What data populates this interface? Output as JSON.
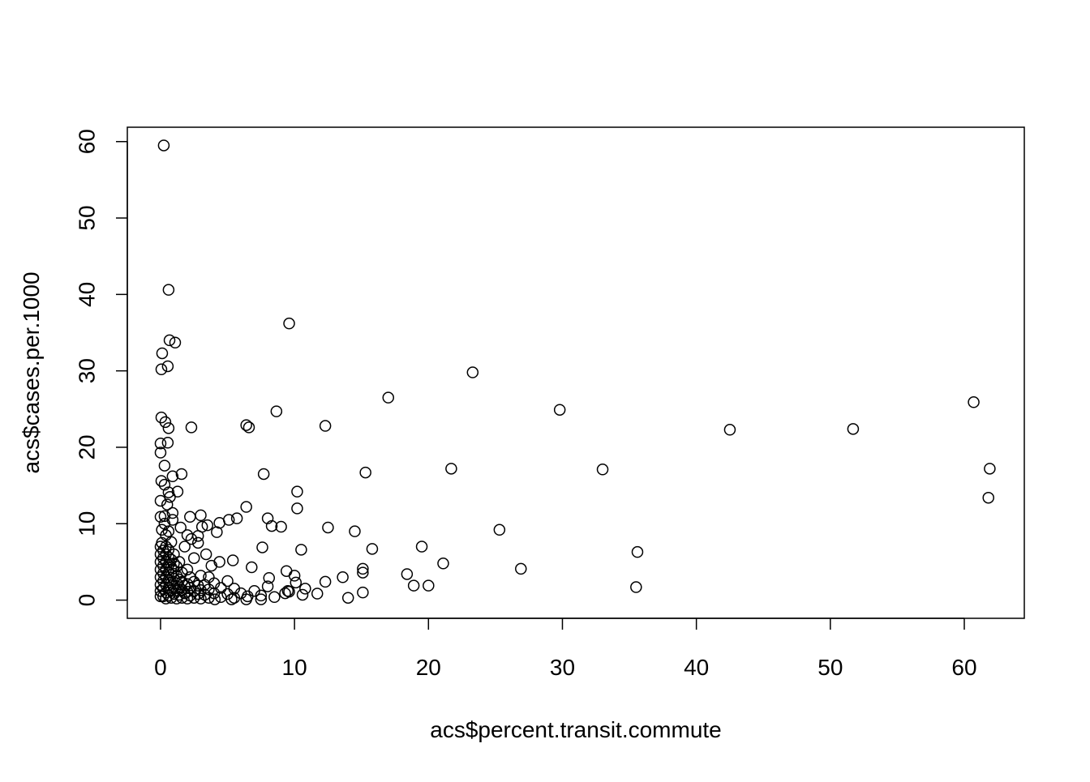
{
  "chart_data": {
    "type": "scatter",
    "x_label": "acs$percent.transit.commute",
    "y_label": "acs$cases.per.1000",
    "xlim": [
      -2.48,
      64.48
    ],
    "ylim": [
      -2.38,
      61.88
    ],
    "xticks": [
      0,
      10,
      20,
      30,
      40,
      50,
      60
    ],
    "yticks": [
      0,
      10,
      20,
      30,
      40,
      50,
      60
    ],
    "color": "#000000",
    "x": [
      0.24,
      0.6,
      9.6,
      0.67,
      1.09,
      0.12,
      0.54,
      0.06,
      23.3,
      17.0,
      29.8,
      60.7,
      8.65,
      0.06,
      0.36,
      0.6,
      2.3,
      6.4,
      6.6,
      12.3,
      42.5,
      51.7,
      0,
      0.54,
      0,
      0.3,
      21.7,
      33.0,
      61.9,
      7.7,
      15.3,
      1.57,
      0.9,
      0.06,
      0.3,
      1.27,
      0.6,
      10.2,
      61.8,
      0,
      6.4,
      10.2,
      0.9,
      2.2,
      3.0,
      8.0,
      0,
      5.7,
      5.1,
      4.4,
      3.5,
      3.1,
      9.0,
      8.3,
      12.5,
      14.5,
      25.3,
      4.2,
      2.8,
      19.5,
      7.6,
      15.8,
      10.5,
      35.6,
      3.4,
      21.1,
      26.9,
      15.1,
      4.4,
      5.4,
      6.8,
      18.4,
      15.1,
      9.4,
      10.0,
      13.6,
      12.3,
      10.1,
      8.1,
      18.9,
      20.0,
      35.5,
      10.8,
      11.7,
      15.1,
      14.0,
      10.6,
      9.6,
      8.5,
      7.5,
      6.4,
      5.3,
      4.05,
      0,
      0,
      0,
      0,
      0,
      0,
      0,
      0,
      0.1,
      0.2,
      0.2,
      0.2,
      0.2,
      0.2,
      0.2,
      0.2,
      0.4,
      0.4,
      0.4,
      0.4,
      0.4,
      0.4,
      0.4,
      0.4,
      0.4,
      0.6,
      0.6,
      0.6,
      0.6,
      0.6,
      0.6,
      0.6,
      0.6,
      0.8,
      0.8,
      0.8,
      0.8,
      0.8,
      0.8,
      0.8,
      1,
      1,
      1,
      1,
      1,
      1,
      1.2,
      1.2,
      1.2,
      1.2,
      1.2,
      1.4,
      1.4,
      1.4,
      1.4,
      1.6,
      1.6,
      1.6,
      1.6,
      1.8,
      1.8,
      1.8,
      2,
      2,
      2,
      2,
      2,
      2.2,
      2.2,
      2.2,
      2.5,
      2.5,
      2.5,
      2.5,
      2.8,
      2.8,
      2.8,
      3,
      3,
      3,
      3.3,
      3.3,
      3.6,
      3.6,
      3.6,
      4,
      4,
      4.5,
      4.5,
      5,
      5,
      5.5,
      5.5,
      6,
      6.5,
      7,
      7.5,
      8,
      9.5,
      9.3,
      3.8,
      2.3,
      1.5,
      0.9,
      0.3,
      0.5,
      0.7,
      0.3,
      0.1
    ],
    "values": [
      59.5,
      40.6,
      36.2,
      34.0,
      33.7,
      32.3,
      30.6,
      30.2,
      29.8,
      26.5,
      24.9,
      25.9,
      24.7,
      23.9,
      23.3,
      22.5,
      22.6,
      22.9,
      22.6,
      22.8,
      22.3,
      22.4,
      20.5,
      20.6,
      19.3,
      17.6,
      17.2,
      17.1,
      17.2,
      16.5,
      16.7,
      16.5,
      16.2,
      15.6,
      15.1,
      14.2,
      14.1,
      14.2,
      13.4,
      13.0,
      12.2,
      12.0,
      11.4,
      10.9,
      11.1,
      10.7,
      10.9,
      10.7,
      10.5,
      10.1,
      9.8,
      9.6,
      9.6,
      9.7,
      9.5,
      9.0,
      9.2,
      8.9,
      8.4,
      7.0,
      6.9,
      6.7,
      6.6,
      6.3,
      6.0,
      4.8,
      4.1,
      4.1,
      5.0,
      5.2,
      4.3,
      3.4,
      3.6,
      3.8,
      3.2,
      3.0,
      2.4,
      2.3,
      2.9,
      1.9,
      1.9,
      1.7,
      1.5,
      0.85,
      1.0,
      0.3,
      0.7,
      1.1,
      0.4,
      0.1,
      0.1,
      0.1,
      0.1,
      0.5,
      1.2,
      2,
      3,
      4,
      5,
      6,
      7,
      7.5,
      6.5,
      5.5,
      4.5,
      3.5,
      2.5,
      1.5,
      0.5,
      0.2,
      1,
      2,
      3,
      4,
      5,
      6,
      7,
      8.5,
      0.6,
      1.6,
      2.6,
      3.6,
      4.6,
      5.6,
      6.6,
      9,
      0.3,
      1.3,
      2.3,
      3.3,
      4.3,
      5.3,
      7.6,
      0.8,
      1.8,
      2.8,
      3.8,
      4.8,
      6,
      0.2,
      1.2,
      2.2,
      3.2,
      4.4,
      0.7,
      1.7,
      2.7,
      5,
      0.3,
      1.3,
      2.4,
      3.6,
      0.9,
      1.9,
      7,
      0.2,
      1.1,
      2.1,
      4,
      8.5,
      0.6,
      1.6,
      3,
      0.3,
      1.2,
      2.4,
      5.5,
      0.8,
      1.9,
      7.5,
      0.2,
      1.3,
      3.2,
      0.7,
      2,
      0.3,
      1.4,
      3,
      0.9,
      2.2,
      0.4,
      1.6,
      0.8,
      2.5,
      0.3,
      1.5,
      0.9,
      0.5,
      1.2,
      0.6,
      1.8,
      1.2,
      0.9,
      4.5,
      8,
      9.5,
      10.5,
      11,
      12.5,
      13.5,
      10,
      9.2
    ]
  }
}
